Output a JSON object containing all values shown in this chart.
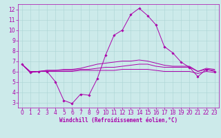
{
  "xlabel": "Windchill (Refroidissement éolien,°C)",
  "bg_color": "#cceaea",
  "grid_color": "#aad4d4",
  "line_color": "#aa00aa",
  "xlim": [
    -0.5,
    23.5
  ],
  "ylim": [
    2.5,
    12.5
  ],
  "xticks": [
    0,
    1,
    2,
    3,
    4,
    5,
    6,
    7,
    8,
    9,
    10,
    11,
    12,
    13,
    14,
    15,
    16,
    17,
    18,
    19,
    20,
    21,
    22,
    23
  ],
  "yticks": [
    3,
    4,
    5,
    6,
    7,
    8,
    9,
    10,
    11,
    12
  ],
  "line1_x": [
    0,
    1,
    2,
    3,
    4,
    5,
    6,
    7,
    8,
    9,
    10,
    11,
    12,
    13,
    14,
    15,
    16,
    17,
    18,
    19,
    20,
    21,
    22,
    23
  ],
  "line1_y": [
    6.7,
    5.9,
    6.0,
    6.0,
    5.0,
    3.2,
    2.9,
    3.8,
    3.7,
    5.3,
    7.6,
    9.5,
    10.0,
    11.5,
    12.1,
    11.4,
    10.5,
    8.4,
    7.8,
    6.9,
    6.4,
    5.5,
    6.2,
    6.0
  ],
  "line2_x": [
    0,
    1,
    2,
    3,
    4,
    5,
    6,
    7,
    8,
    9,
    10,
    11,
    12,
    13,
    14,
    15,
    16,
    17,
    18,
    19,
    20,
    21,
    22,
    23
  ],
  "line2_y": [
    6.7,
    5.9,
    6.0,
    6.1,
    6.1,
    6.1,
    6.1,
    6.2,
    6.2,
    6.3,
    6.4,
    6.4,
    6.5,
    6.6,
    6.7,
    6.7,
    6.5,
    6.4,
    6.4,
    6.4,
    6.4,
    6.0,
    6.2,
    6.1
  ],
  "line3_x": [
    0,
    1,
    2,
    3,
    4,
    5,
    6,
    7,
    8,
    9,
    10,
    11,
    12,
    13,
    14,
    15,
    16,
    17,
    18,
    19,
    20,
    21,
    22,
    23
  ],
  "line3_y": [
    6.7,
    6.0,
    6.0,
    6.1,
    6.1,
    6.2,
    6.2,
    6.3,
    6.5,
    6.7,
    6.8,
    6.9,
    7.0,
    7.0,
    7.1,
    7.0,
    6.8,
    6.6,
    6.5,
    6.5,
    6.5,
    6.0,
    6.3,
    6.2
  ],
  "line4_x": [
    0,
    1,
    2,
    3,
    4,
    5,
    6,
    7,
    8,
    9,
    10,
    11,
    12,
    13,
    14,
    15,
    16,
    17,
    18,
    19,
    20,
    21,
    22,
    23
  ],
  "line4_y": [
    6.7,
    5.9,
    6.0,
    6.0,
    6.0,
    6.0,
    6.0,
    6.1,
    6.1,
    6.1,
    6.1,
    6.1,
    6.2,
    6.2,
    6.2,
    6.2,
    6.1,
    6.0,
    6.0,
    6.0,
    6.0,
    5.8,
    6.0,
    5.9
  ],
  "xlabel_fontsize": 5.5,
  "tick_fontsize": 5.5,
  "linewidth": 0.7,
  "markersize": 1.8
}
